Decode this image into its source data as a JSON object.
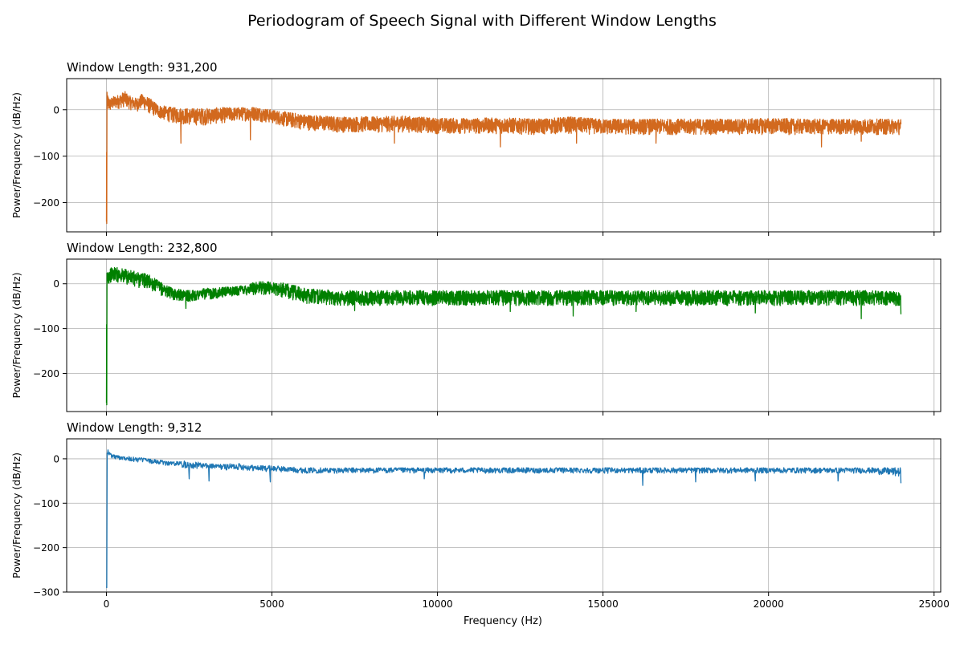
{
  "figure": {
    "suptitle": "Periodogram of Speech Signal with Different Window Lengths",
    "xlabel": "Frequency (Hz)"
  },
  "chart_data": [
    {
      "type": "line",
      "title": "Window Length: 931,200",
      "ylabel": "Power/Frequency (dB/Hz)",
      "xlabel": "",
      "color": "#d2691e",
      "grid": true,
      "xlim": [
        -1200,
        25200
      ],
      "ylim": [
        -263,
        67
      ],
      "xticks": [
        0,
        5000,
        10000,
        15000,
        20000,
        25000
      ],
      "xtick_labels_visible": false,
      "yticks": [
        0,
        -100,
        -200
      ],
      "ytick_labels": [
        "0",
        "−100",
        "−200"
      ],
      "series": [
        {
          "x": [
            0,
            10,
            30,
            100,
            250,
            400,
            550,
            700,
            900,
            1100,
            1300,
            1600,
            2000,
            2500,
            3000,
            3500,
            4000,
            4500,
            5000,
            5500,
            6000,
            7000,
            8000,
            9000,
            10000,
            11000,
            12000,
            13000,
            14000,
            15000,
            16000,
            17000,
            18000,
            19000,
            20000,
            21000,
            22000,
            23000,
            24000
          ],
          "upper": [
            -240,
            40,
            35,
            25,
            30,
            33,
            40,
            30,
            25,
            35,
            25,
            10,
            5,
            3,
            3,
            5,
            5,
            7,
            0,
            -5,
            -10,
            -15,
            -15,
            -13,
            -18,
            -18,
            -17,
            -20,
            -15,
            -20,
            -20,
            -20,
            -20,
            -20,
            -18,
            -20,
            -20,
            -20,
            -20
          ],
          "lower": [
            -245,
            -20,
            -15,
            -10,
            -5,
            -3,
            0,
            -5,
            -10,
            -5,
            -15,
            -25,
            -35,
            -40,
            -40,
            -35,
            -30,
            -30,
            -35,
            -45,
            -50,
            -55,
            -55,
            -55,
            -58,
            -58,
            -58,
            -60,
            -58,
            -60,
            -60,
            -60,
            -60,
            -60,
            -60,
            -60,
            -60,
            -60,
            -60
          ],
          "dips": [
            [
              10,
              -245
            ],
            [
              2250,
              -72
            ],
            [
              4350,
              -65
            ],
            [
              8700,
              -72
            ],
            [
              11900,
              -80
            ],
            [
              14200,
              -72
            ],
            [
              16600,
              -72
            ],
            [
              21600,
              -80
            ],
            [
              22800,
              -68
            ]
          ]
        }
      ]
    },
    {
      "type": "line",
      "title": "Window Length: 232,800",
      "ylabel": "Power/Frequency (dB/Hz)",
      "xlabel": "",
      "color": "#008000",
      "grid": true,
      "xlim": [
        -1200,
        25200
      ],
      "ylim": [
        -285,
        55
      ],
      "xticks": [
        0,
        5000,
        10000,
        15000,
        20000,
        25000
      ],
      "xtick_labels_visible": false,
      "yticks": [
        0,
        -100,
        -200
      ],
      "ytick_labels": [
        "0",
        "−100",
        "−200"
      ],
      "series": [
        {
          "x": [
            0,
            10,
            30,
            100,
            250,
            400,
            550,
            700,
            900,
            1100,
            1300,
            1600,
            2000,
            2500,
            3000,
            3500,
            4000,
            4500,
            5000,
            5500,
            6000,
            7000,
            8000,
            9000,
            10000,
            11000,
            12000,
            13000,
            14000,
            15000,
            16000,
            17000,
            18000,
            19000,
            20000,
            21000,
            22000,
            23000,
            24000
          ],
          "upper": [
            -265,
            30,
            32,
            35,
            38,
            36,
            33,
            30,
            28,
            25,
            20,
            5,
            -10,
            -15,
            -10,
            -8,
            -5,
            5,
            5,
            0,
            -10,
            -15,
            -15,
            -15,
            -15,
            -15,
            -15,
            -15,
            -15,
            -15,
            -15,
            -15,
            -15,
            -15,
            -15,
            -15,
            -15,
            -15,
            -18
          ],
          "lower": [
            -270,
            -5,
            -10,
            -5,
            -2,
            -5,
            -8,
            -10,
            -15,
            -15,
            -20,
            -30,
            -40,
            -45,
            -40,
            -35,
            -30,
            -30,
            -30,
            -40,
            -50,
            -55,
            -55,
            -55,
            -55,
            -55,
            -55,
            -55,
            -55,
            -55,
            -55,
            -55,
            -55,
            -55,
            -55,
            -55,
            -55,
            -55,
            -55
          ],
          "dips": [
            [
              10,
              -270
            ],
            [
              2400,
              -55
            ],
            [
              7500,
              -60
            ],
            [
              12200,
              -62
            ],
            [
              14100,
              -72
            ],
            [
              16000,
              -62
            ],
            [
              19600,
              -65
            ],
            [
              22800,
              -78
            ],
            [
              24000,
              -68
            ]
          ]
        }
      ]
    },
    {
      "type": "line",
      "title": "Window Length: 9,312",
      "ylabel": "Power/Frequency (dB/Hz)",
      "xlabel": "Frequency (Hz)",
      "color": "#1f77b4",
      "grid": true,
      "xlim": [
        -1200,
        25200
      ],
      "ylim": [
        -300,
        45
      ],
      "xticks": [
        0,
        5000,
        10000,
        15000,
        20000,
        25000
      ],
      "xtick_labels_visible": true,
      "xtick_labels": [
        "0",
        "5000",
        "10000",
        "15000",
        "20000",
        "25000"
      ],
      "yticks": [
        0,
        -100,
        -200,
        -300
      ],
      "ytick_labels": [
        "0",
        "−100",
        "−200",
        "−300"
      ],
      "series": [
        {
          "x": [
            0,
            10,
            30,
            100,
            250,
            400,
            550,
            700,
            900,
            1100,
            1300,
            1600,
            2000,
            2500,
            3000,
            3500,
            4000,
            4500,
            5000,
            5500,
            6000,
            7000,
            8000,
            9000,
            10000,
            11000,
            12000,
            13000,
            14000,
            15000,
            16000,
            17000,
            18000,
            19000,
            20000,
            21000,
            22000,
            23000,
            24000
          ],
          "upper": [
            -285,
            30,
            25,
            15,
            10,
            8,
            8,
            5,
            3,
            3,
            0,
            -3,
            -5,
            -5,
            -10,
            -12,
            -10,
            -15,
            -15,
            -18,
            -20,
            -20,
            -20,
            -20,
            -20,
            -20,
            -20,
            -20,
            -20,
            -20,
            -20,
            -20,
            -20,
            -20,
            -20,
            -20,
            -20,
            -20,
            -20
          ],
          "lower": [
            -290,
            10,
            5,
            0,
            -5,
            -5,
            -5,
            -8,
            -10,
            -10,
            -12,
            -15,
            -20,
            -25,
            -25,
            -28,
            -28,
            -30,
            -32,
            -33,
            -35,
            -35,
            -35,
            -35,
            -35,
            -35,
            -35,
            -35,
            -35,
            -35,
            -35,
            -35,
            -35,
            -35,
            -35,
            -35,
            -35,
            -35,
            -45
          ],
          "dips": [
            [
              10,
              -290
            ],
            [
              2500,
              -45
            ],
            [
              3100,
              -50
            ],
            [
              4950,
              -52
            ],
            [
              9600,
              -45
            ],
            [
              16200,
              -60
            ],
            [
              17800,
              -52
            ],
            [
              19600,
              -50
            ],
            [
              22100,
              -50
            ],
            [
              24000,
              -55
            ]
          ]
        }
      ]
    }
  ]
}
